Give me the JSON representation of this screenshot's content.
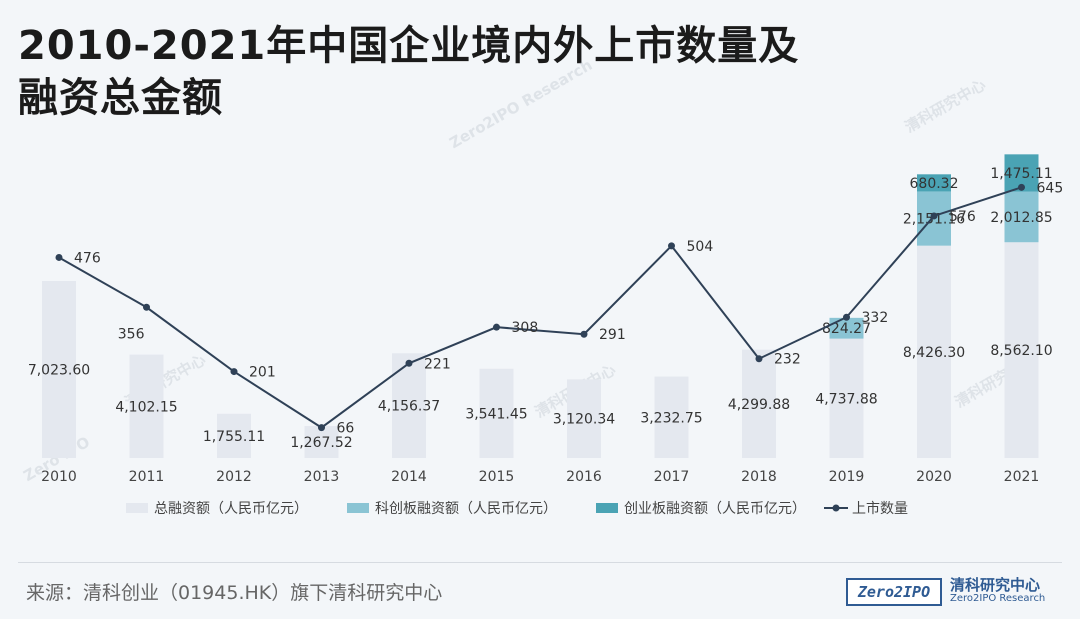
{
  "title_line1": "2010-2021年中国企业境内外上市数量及",
  "title_line2": "融资总金额",
  "source": "来源：清科创业（01945.HK）旗下清科研究中心",
  "logo": {
    "box_text": "Zero2IPO",
    "cn": "清科研究中心",
    "en": "Zero2IPO Research"
  },
  "watermarks": [
    "清科研究中心",
    "Zero2IPO Research",
    "Zero IPO"
  ],
  "colors": {
    "total": "#e4e8ef",
    "star": "#8ac4d4",
    "gem": "#4aa3b4",
    "line": "#2f4157"
  },
  "chart_data": {
    "type": "bar",
    "categories": [
      "2010",
      "2011",
      "2012",
      "2013",
      "2014",
      "2015",
      "2016",
      "2017",
      "2018",
      "2019",
      "2020",
      "2021"
    ],
    "series": [
      {
        "name": "总融资额（人民币亿元）",
        "type": "bar",
        "values": [
          7023.6,
          4102.15,
          1755.11,
          1267.52,
          4156.37,
          3541.45,
          3120.34,
          3232.75,
          4299.88,
          4737.88,
          8426.3,
          8562.1
        ],
        "labels": [
          "7,023.60",
          "4,102.15",
          "1,755.11",
          "1,267.52",
          "4,156.37",
          "3,541.45",
          "3,120.34",
          "3,232.75",
          "4,299.88",
          "4,737.88",
          "8,426.30",
          "8,562.10"
        ]
      },
      {
        "name": "科创板融资额（人民币亿元）",
        "type": "bar",
        "values": [
          null,
          null,
          null,
          null,
          null,
          null,
          null,
          null,
          null,
          824.27,
          2151.16,
          2012.85
        ],
        "labels": [
          "",
          "",
          "",
          "",
          "",
          "",
          "",
          "",
          "",
          "824.27",
          "2,151.16",
          "2,012.85"
        ]
      },
      {
        "name": "创业板融资额（人民币亿元）",
        "type": "bar",
        "values": [
          null,
          null,
          null,
          null,
          null,
          null,
          null,
          null,
          null,
          null,
          680.32,
          1475.11
        ],
        "labels": [
          "",
          "",
          "",
          "",
          "",
          "",
          "",
          "",
          "",
          "",
          "680.32",
          "1,475.11"
        ]
      },
      {
        "name": "上市数量",
        "type": "line",
        "values": [
          476,
          356,
          201,
          66,
          221,
          308,
          291,
          504,
          232,
          332,
          576,
          645
        ],
        "labels": [
          "476",
          "356",
          "201",
          "66",
          "221",
          "308",
          "291",
          "504",
          "232",
          "332",
          "576",
          "645"
        ]
      }
    ],
    "legend_position": "bottom",
    "grid": false
  }
}
